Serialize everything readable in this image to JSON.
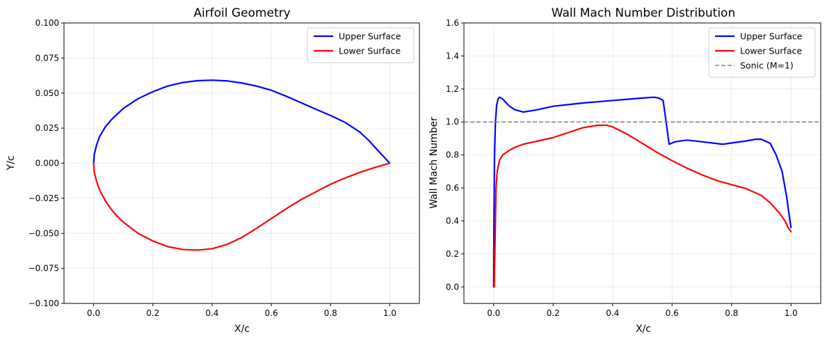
{
  "chart_data": [
    {
      "type": "line",
      "title": "Airfoil Geometry",
      "xlabel": "X/c",
      "ylabel": "Y/c",
      "xlim": [
        -0.1,
        1.1
      ],
      "ylim": [
        -0.1,
        0.1
      ],
      "xticks": [
        "0.0",
        "0.2",
        "0.4",
        "0.6",
        "0.8",
        "1.0"
      ],
      "xtick_values": [
        0.0,
        0.2,
        0.4,
        0.6,
        0.8,
        1.0
      ],
      "yticks": [
        "−0.100",
        "−0.075",
        "−0.050",
        "−0.025",
        "0.000",
        "0.025",
        "0.050",
        "0.075",
        "0.100"
      ],
      "ytick_values": [
        -0.1,
        -0.075,
        -0.05,
        -0.025,
        0.0,
        0.025,
        0.05,
        0.075,
        0.1
      ],
      "grid": true,
      "legend_position": "top-right",
      "series": [
        {
          "name": "Upper Surface",
          "color": "#0000ff",
          "style": "solid",
          "x": [
            0.0,
            0.002,
            0.01,
            0.02,
            0.04,
            0.06,
            0.08,
            0.1,
            0.15,
            0.2,
            0.25,
            0.3,
            0.35,
            0.4,
            0.45,
            0.5,
            0.55,
            0.6,
            0.65,
            0.7,
            0.75,
            0.8,
            0.85,
            0.9,
            0.93,
            0.96,
            0.98,
            1.0
          ],
          "y": [
            0.0,
            0.006,
            0.013,
            0.019,
            0.026,
            0.031,
            0.035,
            0.039,
            0.046,
            0.051,
            0.055,
            0.0575,
            0.0588,
            0.0592,
            0.0587,
            0.0572,
            0.055,
            0.052,
            0.0478,
            0.0432,
            0.0385,
            0.034,
            0.029,
            0.022,
            0.016,
            0.009,
            0.0045,
            0.0
          ]
        },
        {
          "name": "Lower Surface",
          "color": "#ff0000",
          "style": "solid",
          "x": [
            0.0,
            0.002,
            0.01,
            0.02,
            0.04,
            0.06,
            0.08,
            0.1,
            0.15,
            0.2,
            0.25,
            0.3,
            0.35,
            0.4,
            0.45,
            0.5,
            0.55,
            0.6,
            0.65,
            0.7,
            0.75,
            0.8,
            0.85,
            0.9,
            0.95,
            1.0
          ],
          "y": [
            0.0,
            -0.006,
            -0.013,
            -0.019,
            -0.027,
            -0.033,
            -0.038,
            -0.042,
            -0.05,
            -0.0555,
            -0.0595,
            -0.0615,
            -0.062,
            -0.061,
            -0.058,
            -0.053,
            -0.0465,
            -0.0395,
            -0.0325,
            -0.026,
            -0.0205,
            -0.015,
            -0.0105,
            -0.0065,
            -0.003,
            0.0
          ]
        }
      ]
    },
    {
      "type": "line",
      "title": "Wall Mach Number Distribution",
      "xlabel": "X/c",
      "ylabel": "Wall Mach Number",
      "xlim": [
        -0.1,
        1.1
      ],
      "ylim": [
        -0.1,
        1.6
      ],
      "xticks": [
        "0.0",
        "0.2",
        "0.4",
        "0.6",
        "0.8",
        "1.0"
      ],
      "xtick_values": [
        0.0,
        0.2,
        0.4,
        0.6,
        0.8,
        1.0
      ],
      "yticks": [
        "0.0",
        "0.2",
        "0.4",
        "0.6",
        "0.8",
        "1.0",
        "1.2",
        "1.4",
        "1.6"
      ],
      "ytick_values": [
        0.0,
        0.2,
        0.4,
        0.6,
        0.8,
        1.0,
        1.2,
        1.4,
        1.6
      ],
      "grid": true,
      "legend_position": "top-right",
      "series": [
        {
          "name": "Upper Surface",
          "color": "#0000ff",
          "style": "solid",
          "x": [
            0.0,
            0.001,
            0.003,
            0.006,
            0.01,
            0.015,
            0.02,
            0.03,
            0.05,
            0.07,
            0.1,
            0.15,
            0.2,
            0.3,
            0.4,
            0.5,
            0.54,
            0.555,
            0.57,
            0.58,
            0.59,
            0.61,
            0.65,
            0.7,
            0.77,
            0.85,
            0.88,
            0.9,
            0.93,
            0.95,
            0.97,
            0.985,
            0.995,
            1.0
          ],
          "y": [
            0.0,
            0.4,
            0.8,
            1.0,
            1.1,
            1.14,
            1.15,
            1.14,
            1.1,
            1.075,
            1.06,
            1.075,
            1.095,
            1.115,
            1.13,
            1.145,
            1.15,
            1.145,
            1.13,
            1.0,
            0.865,
            0.88,
            0.89,
            0.88,
            0.865,
            0.885,
            0.895,
            0.895,
            0.87,
            0.8,
            0.7,
            0.55,
            0.42,
            0.36
          ]
        },
        {
          "name": "Lower Surface",
          "color": "#ff0000",
          "style": "solid",
          "x": [
            0.0,
            0.002,
            0.005,
            0.008,
            0.012,
            0.02,
            0.03,
            0.05,
            0.07,
            0.1,
            0.15,
            0.2,
            0.25,
            0.3,
            0.35,
            0.38,
            0.4,
            0.45,
            0.5,
            0.55,
            0.6,
            0.65,
            0.7,
            0.75,
            0.8,
            0.85,
            0.9,
            0.93,
            0.96,
            0.98,
            0.99,
            1.0
          ],
          "y": [
            0.0,
            0.0,
            0.3,
            0.6,
            0.7,
            0.77,
            0.8,
            0.825,
            0.845,
            0.865,
            0.885,
            0.905,
            0.935,
            0.965,
            0.98,
            0.98,
            0.97,
            0.925,
            0.87,
            0.815,
            0.765,
            0.72,
            0.68,
            0.645,
            0.62,
            0.595,
            0.555,
            0.51,
            0.45,
            0.4,
            0.36,
            0.335
          ]
        },
        {
          "name": "Sonic (M=1)",
          "color": "#808080",
          "style": "dashed",
          "x": [
            -0.1,
            1.1
          ],
          "y": [
            1.0,
            1.0
          ]
        }
      ]
    }
  ]
}
